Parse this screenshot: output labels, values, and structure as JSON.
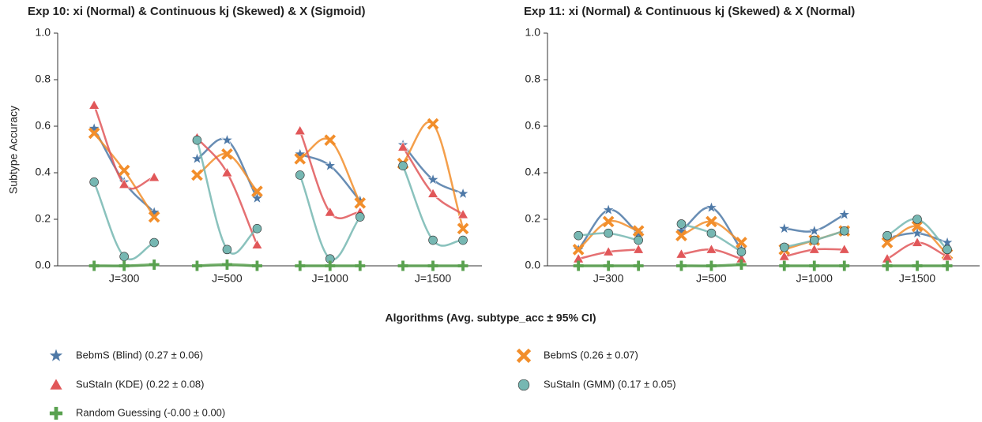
{
  "chart_data": {
    "type": "line",
    "xlabel": "Algorithms (Avg. subtype_acc ± 95% CI)",
    "ylabel": "Subtype Accuracy",
    "series": [
      {
        "name": "BebmS (Blind) (0.27 ± 0.06)",
        "color": "#4e79a7",
        "marker": "star"
      },
      {
        "name": "BebmS (0.26 ± 0.07)",
        "color": "#f28e2b",
        "marker": "x"
      },
      {
        "name": "SuStaIn (KDE) (0.22 ± 0.08)",
        "color": "#e15759",
        "marker": "triangle"
      },
      {
        "name": "SuStaIn (GMM) (0.17 ± 0.05)",
        "color": "#76b7b2",
        "marker": "circle"
      },
      {
        "name": "Random Guessing (-0.00 ± 0.00)",
        "color": "#59a14f",
        "marker": "plus"
      }
    ],
    "charts": [
      {
        "title": "Exp 10: xi (Normal) & Continuous kj (Skewed) & X (Sigmoid)",
        "categories": [
          "J=300",
          "J=500",
          "J=1000",
          "J=1500"
        ],
        "ylim": [
          0,
          1
        ],
        "yticks": [
          {
            "value": 0,
            "label": "0.0"
          },
          {
            "value": 0.2,
            "label": "0.2"
          },
          {
            "value": 0.4,
            "label": "0.4"
          },
          {
            "value": 0.6,
            "label": "0.6"
          },
          {
            "value": 0.8,
            "label": "0.8"
          },
          {
            "value": 1,
            "label": "1.0"
          }
        ],
        "values": [
          [
            [
              0.59,
              0.36,
              0.23
            ],
            [
              0.46,
              0.54,
              0.29
            ],
            [
              0.48,
              0.43,
              0.28
            ],
            [
              0.52,
              0.37,
              0.31
            ]
          ],
          [
            [
              0.57,
              0.41,
              0.21
            ],
            [
              0.39,
              0.48,
              0.32
            ],
            [
              0.46,
              0.54,
              0.27
            ],
            [
              0.44,
              0.61,
              0.16
            ]
          ],
          [
            [
              0.69,
              0.35,
              0.38
            ],
            [
              0.55,
              0.4,
              0.09
            ],
            [
              0.58,
              0.23,
              0.23
            ],
            [
              0.51,
              0.31,
              0.22
            ]
          ],
          [
            [
              0.36,
              0.04,
              0.1
            ],
            [
              0.54,
              0.07,
              0.16
            ],
            [
              0.39,
              0.03,
              0.21
            ],
            [
              0.43,
              0.11,
              0.11
            ]
          ],
          [
            [
              0,
              0,
              0.005
            ],
            [
              0,
              0.005,
              0
            ],
            [
              0,
              0,
              0
            ],
            [
              0,
              0,
              0
            ]
          ]
        ]
      },
      {
        "title": "Exp 11: xi (Normal) & Continuous kj (Skewed) & X (Normal)",
        "categories": [
          "J=300",
          "J=500",
          "J=1000",
          "J=1500"
        ],
        "ylim": [
          0,
          1
        ],
        "yticks": [
          {
            "value": 0,
            "label": "0.0"
          },
          {
            "value": 0.2,
            "label": "0.2"
          },
          {
            "value": 0.4,
            "label": "0.4"
          },
          {
            "value": 0.6,
            "label": "0.6"
          },
          {
            "value": 0.8,
            "label": "0.8"
          },
          {
            "value": 1,
            "label": "1.0"
          }
        ],
        "values": [
          [
            [
              0.07,
              0.24,
              0.14
            ],
            [
              0.15,
              0.25,
              0.07
            ],
            [
              0.16,
              0.15,
              0.22
            ],
            [
              0.12,
              0.14,
              0.1
            ]
          ],
          [
            [
              0.07,
              0.19,
              0.15
            ],
            [
              0.13,
              0.19,
              0.1
            ],
            [
              0.07,
              0.11,
              0.15
            ],
            [
              0.1,
              0.17,
              0.05
            ]
          ],
          [
            [
              0.03,
              0.06,
              0.07
            ],
            [
              0.05,
              0.07,
              0.03
            ],
            [
              0.04,
              0.07,
              0.07
            ],
            [
              0.03,
              0.1,
              0.04
            ]
          ],
          [
            [
              0.13,
              0.14,
              0.11
            ],
            [
              0.18,
              0.14,
              0.06
            ],
            [
              0.08,
              0.11,
              0.15
            ],
            [
              0.13,
              0.2,
              0.07
            ]
          ],
          [
            [
              0,
              0,
              0
            ],
            [
              0,
              0,
              0.005
            ],
            [
              0,
              0,
              0
            ],
            [
              0,
              0,
              0
            ]
          ]
        ]
      }
    ]
  }
}
